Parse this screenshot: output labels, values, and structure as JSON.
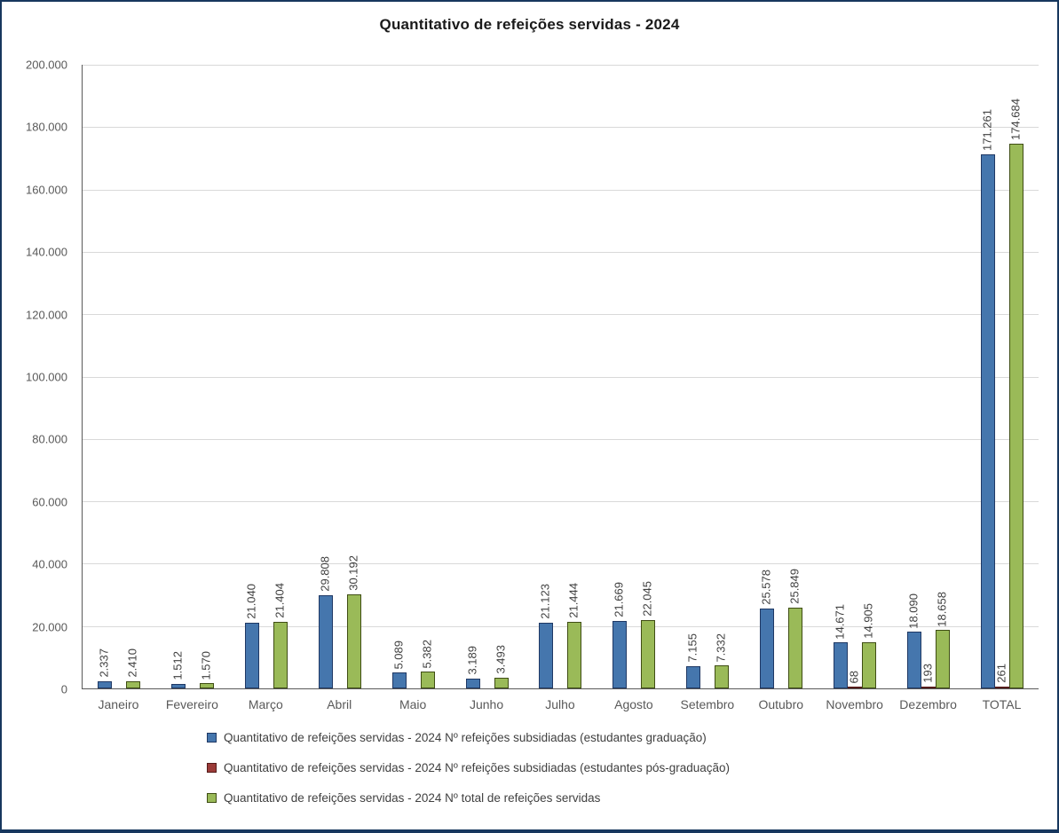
{
  "chart_data": {
    "type": "bar",
    "title": "Quantitativo de refeições servidas - 2024",
    "xlabel": "",
    "ylabel": "",
    "ylim": [
      0,
      200000
    ],
    "grid": true,
    "legend_position": "bottom",
    "yticks": [
      "0",
      "20.000",
      "40.000",
      "60.000",
      "80.000",
      "100.000",
      "120.000",
      "140.000",
      "160.000",
      "180.000",
      "200.000"
    ],
    "categories": [
      "Janeiro",
      "Fevereiro",
      "Março",
      "Abril",
      "Maio",
      "Junho",
      "Julho",
      "Agosto",
      "Setembro",
      "Outubro",
      "Novembro",
      "Dezembro",
      "TOTAL"
    ],
    "series": [
      {
        "name": "Quantitativo de refeições servidas - 2024 Nº refeições subsidiadas (estudantes graduação)",
        "fill": "#4576AD",
        "border": "#1F3864",
        "values": [
          2337,
          1512,
          21040,
          29808,
          5089,
          3189,
          21123,
          21669,
          7155,
          25578,
          14671,
          18090,
          171261
        ],
        "labels": [
          "2.337",
          "1.512",
          "21.040",
          "29.808",
          "5.089",
          "3.189",
          "21.123",
          "21.669",
          "7.155",
          "25.578",
          "14.671",
          "18.090",
          "171.261"
        ]
      },
      {
        "name": "Quantitativo de refeições servidas - 2024 Nº refeições subsidiadas (estudantes pós-graduação)",
        "fill": "#9B3B38",
        "border": "#541B1A",
        "values": [
          null,
          null,
          null,
          null,
          null,
          null,
          null,
          null,
          null,
          null,
          68,
          193,
          261
        ],
        "labels": [
          "",
          "",
          "",
          "",
          "",
          "",
          "",
          "",
          "",
          "",
          "68",
          "193",
          "261"
        ]
      },
      {
        "name": "Quantitativo de refeições servidas - 2024 Nº total de refeições servidas",
        "fill": "#9ABA58",
        "border": "#3F4D14",
        "values": [
          2410,
          1570,
          21404,
          30192,
          5382,
          3493,
          21444,
          22045,
          7332,
          25849,
          14905,
          18658,
          174684
        ],
        "labels": [
          "2.410",
          "1.570",
          "21.404",
          "30.192",
          "5.382",
          "3.493",
          "21.444",
          "22.045",
          "7.332",
          "25.849",
          "14.905",
          "18.658",
          "174.684"
        ]
      }
    ]
  },
  "colors": {
    "frame_border": "#17375E",
    "gridline": "#D9D9D9",
    "axis_line": "#595959",
    "tick_label": "#595959",
    "value_label": "#404040",
    "title_text": "#1a1a1a"
  }
}
